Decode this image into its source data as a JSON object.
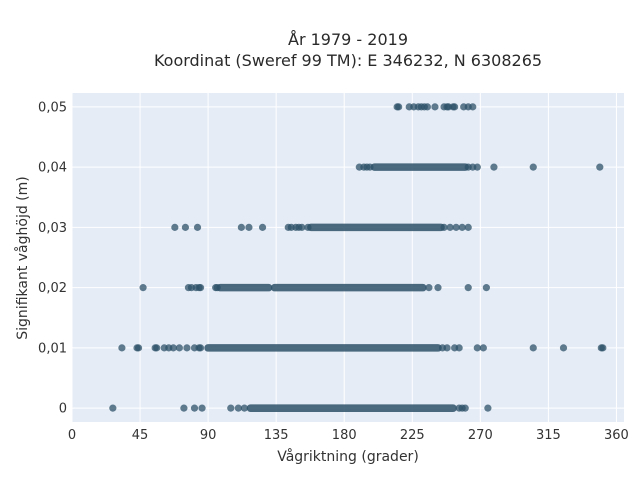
{
  "chart_data": {
    "type": "scatter",
    "title": "År 1979 - 2019",
    "subtitle": "Koordinat (Sweref 99 TM): E 346232, N 6308265",
    "xlabel": "Vågriktning (grader)",
    "ylabel": "Signifikant våghöjd (m)",
    "xlim": [
      0,
      365
    ],
    "ylim": [
      -0.0023,
      0.0523
    ],
    "x_ticks": [
      0,
      45,
      90,
      135,
      180,
      225,
      270,
      315,
      360
    ],
    "x_tick_labels": [
      "0",
      "45",
      "90",
      "135",
      "180",
      "225",
      "270",
      "315",
      "360"
    ],
    "y_ticks": [
      0,
      0.01,
      0.02,
      0.03,
      0.04,
      0.05
    ],
    "y_tick_labels": [
      "0",
      "0,01",
      "0,02",
      "0,03",
      "0,04",
      "0,05"
    ],
    "grid": true,
    "marker_color": "#2e5168",
    "background_color": "#e5ecf6",
    "bands": [
      {
        "y": 0,
        "dense_ranges": [
          [
            118,
            252
          ]
        ],
        "points": [
          27,
          74,
          81,
          86,
          105,
          110,
          114,
          256,
          258,
          260,
          275
        ]
      },
      {
        "y": 0.01,
        "dense_ranges": [
          [
            90,
            242
          ]
        ],
        "points": [
          33,
          43,
          44,
          55,
          56,
          61,
          64,
          67,
          71,
          76,
          81,
          84,
          85,
          245,
          248,
          253,
          256,
          268,
          272,
          305,
          325,
          350,
          351
        ]
      },
      {
        "y": 0.02,
        "dense_ranges": [
          [
            134,
            232
          ],
          [
            98,
            130
          ]
        ],
        "points": [
          47,
          77,
          79,
          82,
          84,
          85,
          95,
          96,
          236,
          242,
          262,
          274
        ]
      },
      {
        "y": 0.03,
        "dense_ranges": [
          [
            158,
            244
          ]
        ],
        "points": [
          68,
          75,
          83,
          112,
          117,
          126,
          143,
          145,
          148,
          150,
          152,
          156,
          246,
          250,
          254,
          258,
          262
        ]
      },
      {
        "y": 0.04,
        "dense_ranges": [
          [
            200,
            260
          ]
        ],
        "points": [
          190,
          193,
          195,
          197,
          262,
          265,
          268,
          279,
          305,
          349
        ]
      },
      {
        "y": 0.05,
        "dense_ranges": [],
        "points": [
          215,
          216,
          223,
          226,
          229,
          231,
          233,
          235,
          240,
          246,
          248,
          249,
          252,
          253,
          259,
          262,
          265
        ]
      }
    ]
  }
}
